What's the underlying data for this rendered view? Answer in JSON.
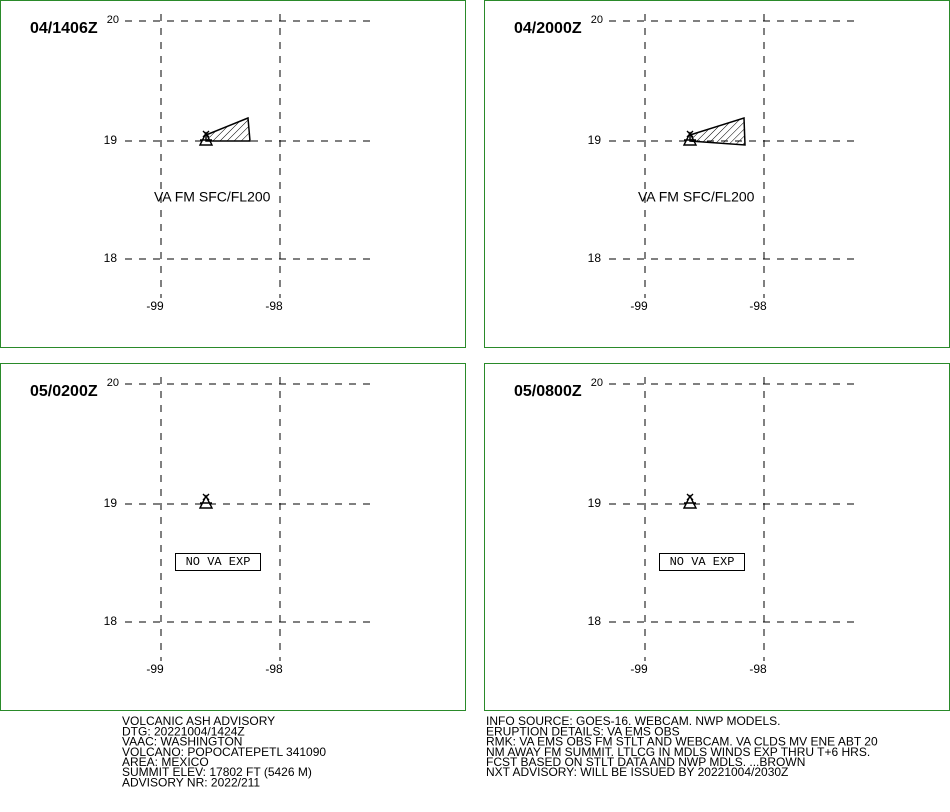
{
  "panels": [
    {
      "time": "04/1406Z",
      "lat_labels": [
        "20",
        "19",
        "18"
      ],
      "lon_labels": [
        "-99",
        "-98"
      ],
      "label": "VA FM SFC/FL200"
    },
    {
      "time": "04/2000Z",
      "lat_labels": [
        "20",
        "19",
        "18"
      ],
      "lon_labels": [
        "-99",
        "-98"
      ],
      "label": "VA FM SFC/FL200"
    },
    {
      "time": "05/0200Z",
      "lat_labels": [
        "20",
        "19",
        "18"
      ],
      "lon_labels": [
        "-99",
        "-98"
      ],
      "label": "NO VA EXP"
    },
    {
      "time": "05/0800Z",
      "lat_labels": [
        "20",
        "19",
        "18"
      ],
      "lon_labels": [
        "-99",
        "-98"
      ],
      "label": "NO VA EXP"
    }
  ],
  "footer": {
    "left": [
      "VOLCANIC ASH ADVISORY",
      "DTG: 20221004/1424Z",
      "VAAC: WASHINGTON",
      "VOLCANO: POPOCATEPETL 341090",
      "AREA: MEXICO",
      "SUMMIT ELEV: 17802 FT (5426 M)",
      "ADVISORY NR: 2022/211"
    ],
    "right": [
      "INFO SOURCE: GOES-16. WEBCAM. NWP MODELS.",
      "ERUPTION DETAILS: VA EMS OBS",
      "RMK: VA EMS OBS FM STLT AND WEBCAM. VA CLDS MV ENE ABT 20",
      "NM AWAY FM SUMMIT. LTLCG IN MDLS WINDS EXP THRU T+6 HRS.",
      "FCST BASED ON STLT DATA AND NWP MDLS. ...BROWN",
      "NXT ADVISORY: WILL BE ISSUED BY 20221004/2030Z"
    ]
  }
}
